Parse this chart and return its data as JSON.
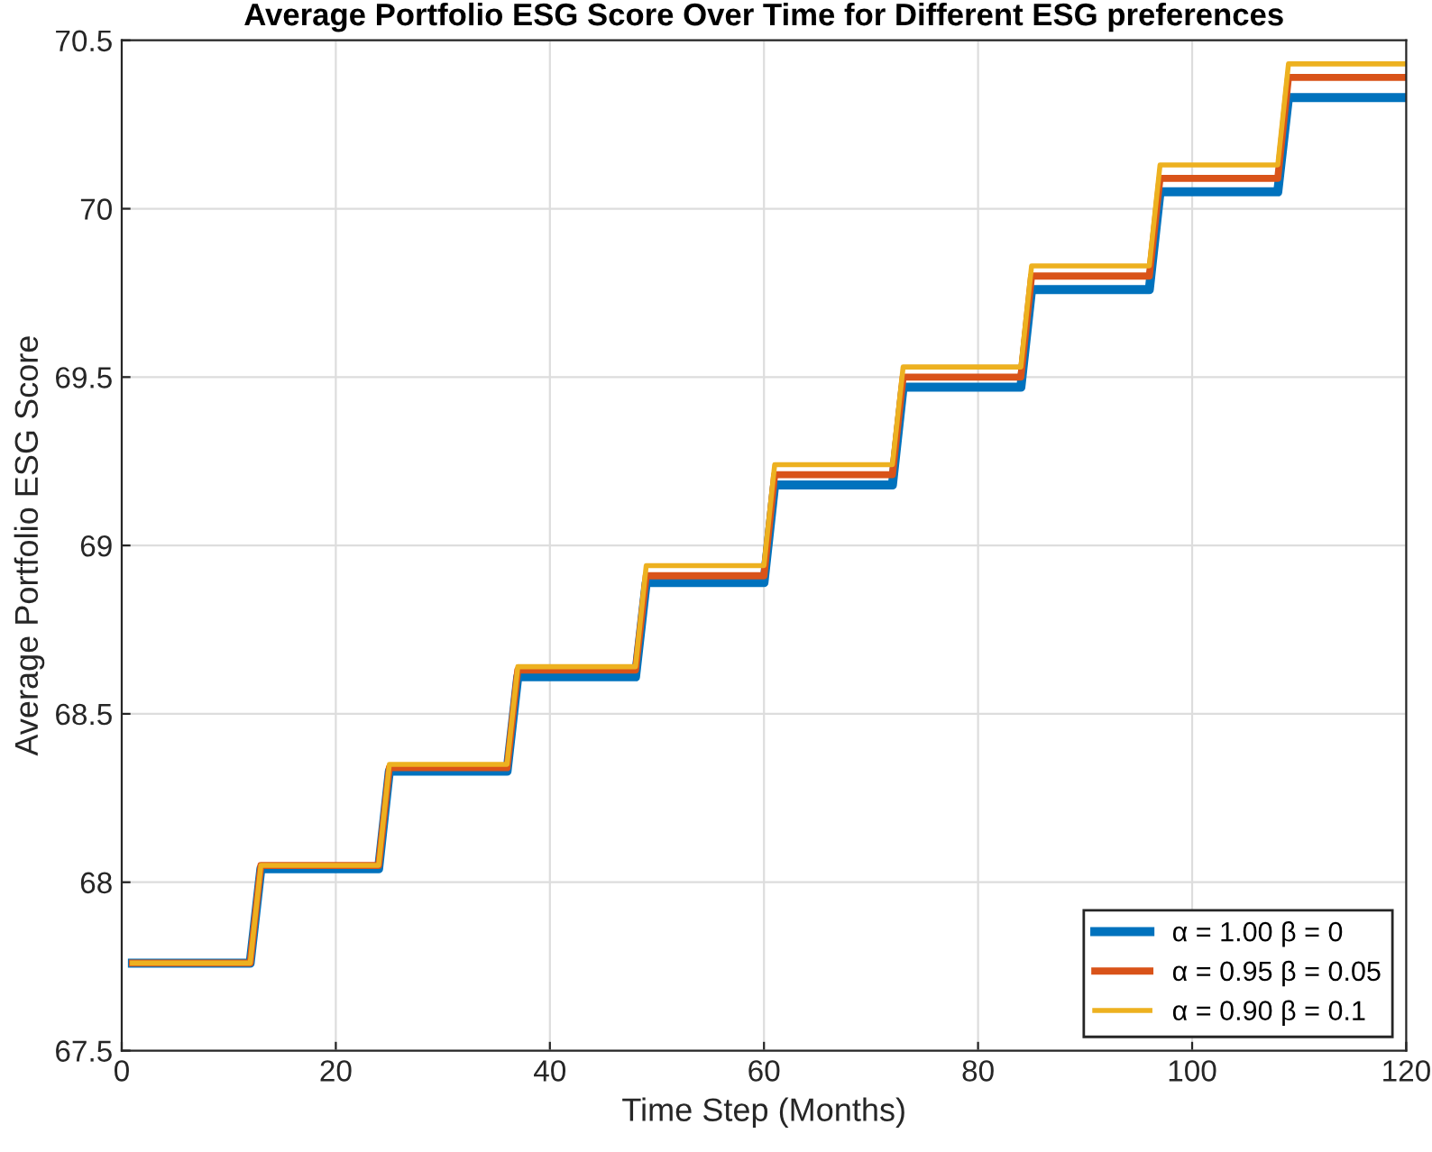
{
  "chart_data": {
    "type": "line",
    "title": "Average Portfolio ESG Score Over Time for Different ESG preferences",
    "xlabel": "Time Step (Months)",
    "ylabel": "Average Portfolio ESG Score",
    "x": [
      1,
      12,
      13,
      24,
      25,
      36,
      37,
      48,
      49,
      60,
      61,
      72,
      73,
      84,
      85,
      96,
      97,
      108,
      109,
      120
    ],
    "series": [
      {
        "name": "α = 1.00 β = 0",
        "color": "#0072bd",
        "values": [
          67.76,
          67.76,
          68.04,
          68.04,
          68.33,
          68.33,
          68.61,
          68.61,
          68.89,
          68.89,
          69.18,
          69.18,
          69.47,
          69.47,
          69.76,
          69.76,
          70.05,
          70.05,
          70.33,
          70.33
        ]
      },
      {
        "name": "α = 0.95 β = 0.05",
        "color": "#d95319",
        "values": [
          67.76,
          67.76,
          68.05,
          68.05,
          68.34,
          68.34,
          68.63,
          68.63,
          68.91,
          68.91,
          69.21,
          69.21,
          69.5,
          69.5,
          69.8,
          69.8,
          70.09,
          70.09,
          70.39,
          70.39
        ]
      },
      {
        "name": "α = 0.90 β = 0.1",
        "color": "#edb120",
        "values": [
          67.76,
          67.76,
          68.05,
          68.05,
          68.35,
          68.35,
          68.64,
          68.64,
          68.94,
          68.94,
          69.24,
          69.24,
          69.53,
          69.53,
          69.83,
          69.83,
          70.13,
          70.13,
          70.43,
          70.43
        ]
      }
    ],
    "xlim": [
      0,
      120
    ],
    "xticks": [
      0,
      20,
      40,
      60,
      80,
      100,
      120
    ],
    "ylim": [
      67.5,
      70.5
    ],
    "yticks": [
      67.5,
      68,
      68.5,
      69,
      69.5,
      70,
      70.5
    ],
    "grid": true,
    "legend": "bottom right",
    "marker": "none",
    "line_style": "solid"
  }
}
